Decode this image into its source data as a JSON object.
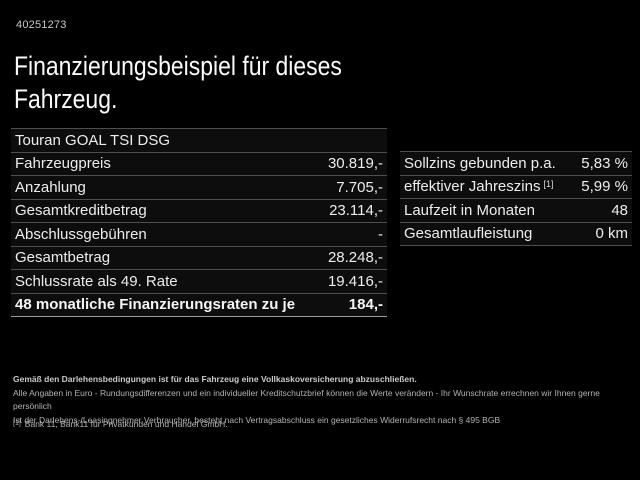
{
  "page": {
    "id_number": "40251273",
    "title_line1": "Finanzierungsbeispiel für dieses",
    "title_line2": "Fahrzeug."
  },
  "colors": {
    "background": "#000000",
    "text": "#ededed",
    "separator": "#4e4e4e",
    "row_background": "#0d0d0d"
  },
  "left_table": {
    "rows": [
      {
        "label": "Touran GOAL TSI DSG",
        "value": ""
      },
      {
        "label": "Fahrzeugpreis",
        "value": "30.819,-"
      },
      {
        "label": "Anzahlung",
        "value": "7.705,-"
      },
      {
        "label": "Gesamtkreditbetrag",
        "value": "23.114,-"
      },
      {
        "label": "Abschlussgebühren",
        "value": "-"
      },
      {
        "label": "Gesamtbetrag",
        "value": "28.248,-"
      },
      {
        "label": "Schlussrate als 49. Rate",
        "value": "19.416,-"
      },
      {
        "label": "48 monatliche Finanzierungsraten zu je",
        "value": "184,-"
      }
    ]
  },
  "right_table": {
    "rows": [
      {
        "label": "Sollzins gebunden p.a.",
        "value": "5,83 %"
      },
      {
        "label": "effektiver Jahreszins",
        "sup": "[1]",
        "value": "5,99 %"
      },
      {
        "label": "Laufzeit in Monaten",
        "value": "48"
      },
      {
        "label": "Gesamtlaufleistung",
        "value": "0 km"
      }
    ]
  },
  "footnotes": {
    "bold_line": "Gemäß den Darlehensbedingungen ist für das Fahrzeug eine Vollkaskoversicherung abzuschließen.",
    "line2": "Alle Angaben in Euro - Rundungsdifferenzen und ein individueller Kreditschutzbrief können die Werte verändern - Ihr Wunschrate errechnen wir Ihnen gerne persönlich",
    "line3": "Ist der Darlehens-/Leasingnehmer Verbraucher, besteht nach Vertragsabschluss ein gesetzliches Widerrufsrecht nach § 495 BGB",
    "ref_marker": "[1]",
    "ref_text": "Bank 11, Bank11 für Privatkunden und Handel GmbH."
  }
}
